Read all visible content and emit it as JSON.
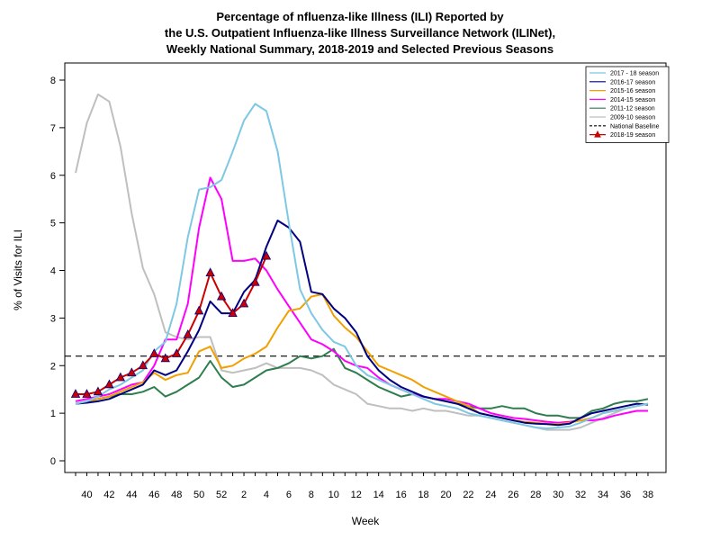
{
  "chart_data": {
    "type": "line",
    "title": [
      "Percentage of nfluenza-like Illness (ILI) Reported by",
      "the U.S. Outpatient Influenza-like Illness Surveillance Network (ILINet),",
      "Weekly National Summary, 2018-2019 and Selected Previous Seasons"
    ],
    "xlabel": "Week",
    "ylabel": "% of Visits for ILI",
    "ylim": [
      0,
      8
    ],
    "yticks": [
      0,
      1,
      2,
      3,
      4,
      5,
      6,
      7,
      8
    ],
    "xtick_labels": [
      "40",
      "42",
      "44",
      "46",
      "48",
      "50",
      "52",
      "2",
      "4",
      "6",
      "8",
      "10",
      "12",
      "14",
      "16",
      "18",
      "20",
      "22",
      "24",
      "26",
      "28",
      "30",
      "32",
      "34",
      "36",
      "38"
    ],
    "legend": "top-right",
    "baseline": {
      "name": "National Baseline",
      "value": 2.2,
      "color": "#000000"
    },
    "series": [
      {
        "name": "2017 - 18 season",
        "color": "#7ec8e3",
        "values": [
          1.2,
          1.25,
          1.35,
          1.5,
          1.6,
          1.75,
          1.9,
          2.3,
          2.5,
          3.3,
          4.7,
          5.7,
          5.75,
          5.9,
          6.5,
          7.15,
          7.5,
          7.35,
          6.5,
          5.0,
          3.6,
          3.1,
          2.75,
          2.5,
          2.4,
          2.0,
          1.8,
          1.7,
          1.6,
          1.5,
          1.4,
          1.3,
          1.2,
          1.15,
          1.1,
          1.0,
          0.95,
          0.9,
          0.85,
          0.8,
          0.75,
          0.7,
          0.68,
          0.7,
          0.72,
          0.8,
          0.9,
          1.0,
          1.05,
          1.1,
          1.15,
          1.2
        ]
      },
      {
        "name": "2016-17 season",
        "color": "#000080",
        "values": [
          1.2,
          1.22,
          1.25,
          1.3,
          1.4,
          1.5,
          1.6,
          1.9,
          1.8,
          1.9,
          2.3,
          2.75,
          3.35,
          3.1,
          3.1,
          3.55,
          3.8,
          4.5,
          5.05,
          4.9,
          4.6,
          3.55,
          3.5,
          3.2,
          3.0,
          2.7,
          2.2,
          1.9,
          1.7,
          1.55,
          1.45,
          1.35,
          1.3,
          1.25,
          1.2,
          1.1,
          1.0,
          0.95,
          0.9,
          0.85,
          0.8,
          0.78,
          0.77,
          0.75,
          0.78,
          0.9,
          1.0,
          1.05,
          1.1,
          1.15,
          1.2,
          1.18
        ]
      },
      {
        "name": "2015-16 season",
        "color": "#f0a000",
        "values": [
          1.2,
          1.25,
          1.3,
          1.35,
          1.45,
          1.55,
          1.65,
          1.85,
          1.7,
          1.8,
          1.85,
          2.3,
          2.4,
          1.95,
          2.0,
          2.15,
          2.25,
          2.4,
          2.8,
          3.15,
          3.2,
          3.45,
          3.5,
          3.05,
          2.8,
          2.6,
          2.3,
          2.0,
          1.9,
          1.8,
          1.7,
          1.55,
          1.45,
          1.35,
          1.25,
          1.15,
          1.0,
          0.95,
          0.9,
          0.85,
          0.82,
          0.8,
          0.78,
          0.77,
          0.8,
          0.85,
          0.9,
          1.0,
          1.05,
          1.1,
          1.15,
          1.2
        ]
      },
      {
        "name": "2014-15 season",
        "color": "#ff00ff",
        "values": [
          1.25,
          1.3,
          1.35,
          1.4,
          1.5,
          1.6,
          1.65,
          2.0,
          2.55,
          2.55,
          3.3,
          4.9,
          5.95,
          5.5,
          4.2,
          4.2,
          4.25,
          4.0,
          3.6,
          3.25,
          2.9,
          2.55,
          2.45,
          2.3,
          2.1,
          2.0,
          1.95,
          1.75,
          1.6,
          1.5,
          1.4,
          1.35,
          1.3,
          1.3,
          1.25,
          1.2,
          1.1,
          1.0,
          0.95,
          0.9,
          0.88,
          0.85,
          0.82,
          0.8,
          0.82,
          0.85,
          0.85,
          0.88,
          0.95,
          1.0,
          1.05,
          1.05
        ]
      },
      {
        "name": "2011-12 season",
        "color": "#2e7d4f",
        "values": [
          1.2,
          1.25,
          1.3,
          1.35,
          1.4,
          1.4,
          1.45,
          1.55,
          1.35,
          1.45,
          1.6,
          1.75,
          2.1,
          1.75,
          1.55,
          1.6,
          1.75,
          1.9,
          1.95,
          2.05,
          2.2,
          2.15,
          2.2,
          2.35,
          1.95,
          1.85,
          1.7,
          1.55,
          1.45,
          1.35,
          1.4,
          1.35,
          1.3,
          1.25,
          1.2,
          1.15,
          1.1,
          1.1,
          1.15,
          1.1,
          1.1,
          1.0,
          0.95,
          0.95,
          0.9,
          0.9,
          1.05,
          1.1,
          1.2,
          1.25,
          1.25,
          1.3
        ]
      },
      {
        "name": "2009-10 season",
        "color": "#bfbfbf",
        "values": [
          6.05,
          7.1,
          7.7,
          7.55,
          6.6,
          5.2,
          4.05,
          3.5,
          2.7,
          2.6,
          2.55,
          2.6,
          2.6,
          1.9,
          1.85,
          1.9,
          1.95,
          2.05,
          1.95,
          1.95,
          1.95,
          1.9,
          1.8,
          1.6,
          1.5,
          1.4,
          1.2,
          1.15,
          1.1,
          1.1,
          1.05,
          1.1,
          1.05,
          1.05,
          1.0,
          0.95,
          0.95,
          0.9,
          0.85,
          0.8,
          0.75,
          0.7,
          0.65,
          0.65,
          0.65,
          0.7,
          0.8,
          0.9,
          1.0,
          1.1,
          1.15,
          1.2
        ]
      },
      {
        "name": "2018-19 season",
        "color": "#cc0000",
        "marker": "triangle",
        "marker_fill": "#cc0000",
        "marker_stroke": "#000080",
        "values": [
          1.4,
          1.4,
          1.45,
          1.6,
          1.75,
          1.85,
          2.0,
          2.25,
          2.15,
          2.25,
          2.65,
          3.15,
          3.95,
          3.45,
          3.1,
          3.3,
          3.75,
          4.3
        ]
      }
    ]
  }
}
